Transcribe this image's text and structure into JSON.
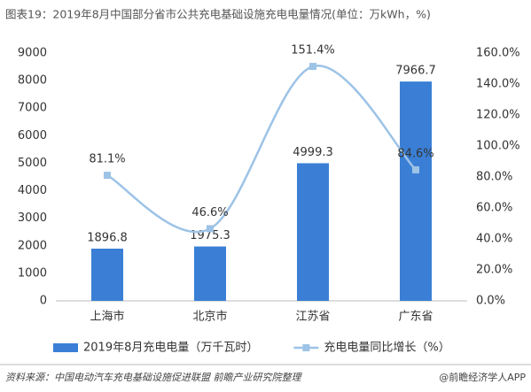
{
  "chart_data": {
    "type": "bar",
    "title": "图表19：2019年8月中国部分省市公共充电基础设施充电电量情况(单位：万kWh，%)",
    "categories": [
      "上海市",
      "北京市",
      "江苏省",
      "广东省"
    ],
    "series": [
      {
        "name": "2019年8月充电电量（万千瓦时）",
        "type": "bar",
        "color": "#3a7fd5",
        "values": [
          1896.8,
          1975.3,
          4999.3,
          7966.7
        ]
      },
      {
        "name": "充电电量同比增长（%）",
        "type": "line",
        "axis": "y2",
        "color": "#9dc3e6",
        "values": [
          81.1,
          46.6,
          151.4,
          84.6
        ],
        "value_labels": [
          "81.1%",
          "46.6%",
          "151.4%",
          "84.6%"
        ]
      }
    ],
    "ylim": [
      0,
      9000
    ],
    "yticks": [
      0,
      1000,
      2000,
      3000,
      4000,
      5000,
      6000,
      7000,
      8000,
      9000
    ],
    "y2lim": [
      0,
      160
    ],
    "y2ticks": [
      {
        "value": 0,
        "label": "0.0%"
      },
      {
        "value": 20,
        "label": "20.0%"
      },
      {
        "value": 40,
        "label": "40.0%"
      },
      {
        "value": 60,
        "label": "60.0%"
      },
      {
        "value": 80,
        "label": "80.0%"
      },
      {
        "value": 100,
        "label": "100.0%"
      },
      {
        "value": 120,
        "label": "120.0%"
      },
      {
        "value": 140,
        "label": "140.0%"
      },
      {
        "value": 160,
        "label": "160.0%"
      }
    ],
    "legend": "bottom",
    "source": "资料来源：中国电动汽车充电基础设施促进联盟 前瞻产业研究院整理",
    "credit": "@前瞻经济学人APP"
  }
}
